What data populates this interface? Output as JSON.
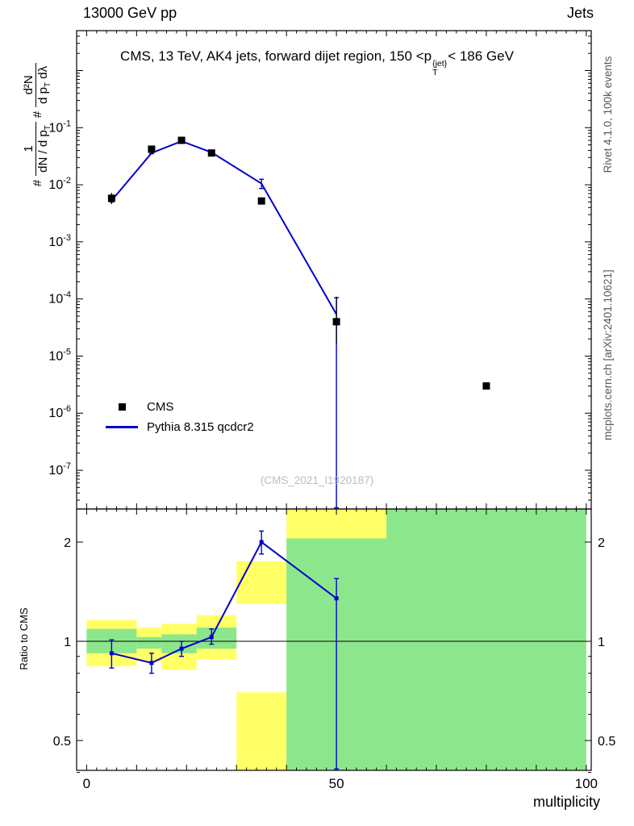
{
  "header": {
    "left": "13000 GeV pp",
    "right": "Jets"
  },
  "title": {
    "pre": "CMS, 13 TeV, AK4 jets, forward dijet region, 150 <p",
    "sup": "{jet}",
    "sub": "T",
    "post": "< 186 GeV"
  },
  "ylabel": {
    "hash1": "#",
    "frac1_num": "1",
    "frac1_den_pre": "dN / d p",
    "frac1_den_sub": "T",
    "hash2": "#",
    "frac2_num": "d²N",
    "frac2_den_pre": "d p",
    "frac2_den_sub": "T",
    "frac2_den_post": " dλ"
  },
  "ratio_ylabel": "Ratio to CMS",
  "xlabel": "multiplicity",
  "watermark": "(CMS_2021_I1920187)",
  "side_notes": {
    "rivet": "Rivet 4.1.0, 100k events",
    "mcplots": "mcplots.cern.ch [arXiv:2401.10621]"
  },
  "legend": [
    {
      "label": "CMS"
    },
    {
      "label": "Pythia 8.315 qcdcr2"
    }
  ],
  "colors": {
    "line": "#0000cc",
    "marker": "#000000",
    "band_yellow": "#ffff66",
    "band_green": "#8ce78c"
  },
  "chart_data": {
    "type": "line",
    "title": "CMS, 13 TeV, AK4 jets, forward dijet region, 150 <p_T^{jet}< 186 GeV",
    "xlabel": "multiplicity",
    "ylabel": "# 1/(dN / d p_T) # d²N/(d p_T dλ)",
    "ratio_ylabel": "Ratio to CMS",
    "legend": [
      "CMS",
      "Pythia 8.315 qcdcr2"
    ],
    "x_range": [
      -2,
      101
    ],
    "y_range": [
      2.1e-08,
      5.0
    ],
    "ratio_range": [
      0.406,
      2.52
    ],
    "y_scale": "log",
    "ratio_scale": "log",
    "x_tick_labels": [
      0,
      50,
      100
    ],
    "x_tick_major_step": 10,
    "x_tick_minor_step": 2,
    "y_tick_exponents": [
      -1,
      -2,
      -3,
      -4,
      -5,
      -6,
      -7
    ],
    "ratio_major_ticks": [
      2,
      1,
      0.5
    ],
    "ratio_major_labels": [
      "2",
      "1",
      "0.5"
    ],
    "ratio_minor_ticks": [
      0.4,
      0.6,
      0.7,
      0.8,
      0.9
    ],
    "bin_edges": [
      0,
      10,
      15,
      22,
      30,
      40,
      60,
      100
    ],
    "series": {
      "cms": {
        "x": [
          5,
          13,
          19,
          25,
          35,
          50,
          80
        ],
        "y": [
          0.0058,
          0.042,
          0.06,
          0.036,
          0.0052,
          4e-05,
          3e-06
        ],
        "yerr_lo": [
          0.0046,
          0.039,
          0.057,
          0.034,
          0.0046,
          1.6e-05,
          2.6e-06
        ],
        "yerr_hi": [
          0.0072,
          0.045,
          0.063,
          0.038,
          0.0059,
          0.00011,
          3.4e-06
        ]
      },
      "pythia": {
        "x": [
          5,
          13,
          19,
          25,
          35,
          50
        ],
        "y": [
          0.0053,
          0.036,
          0.058,
          0.037,
          0.0105,
          5.4e-05
        ],
        "yerr_lo": [
          0.005,
          0.035,
          0.056,
          0.0355,
          0.0086,
          2.2e-08
        ],
        "yerr_hi": [
          0.0056,
          0.037,
          0.06,
          0.0385,
          0.0125,
          0.000105
        ]
      },
      "ratio": {
        "x": [
          5,
          13,
          19,
          25,
          35,
          50
        ],
        "y": [
          0.92,
          0.86,
          0.95,
          1.03,
          2.0,
          1.35
        ],
        "yerr_lo": [
          0.83,
          0.8,
          0.9,
          0.98,
          1.84,
          0.41
        ],
        "yerr_hi": [
          1.01,
          0.92,
          1.0,
          1.09,
          2.16,
          1.55
        ]
      }
    },
    "bands": [
      {
        "x1": 0,
        "x2": 10,
        "lo": 0.84,
        "hi": 1.16,
        "c": "y"
      },
      {
        "x1": 10,
        "x2": 15,
        "lo": 0.87,
        "hi": 1.1,
        "c": "y"
      },
      {
        "x1": 15,
        "x2": 22,
        "lo": 0.82,
        "hi": 1.13,
        "c": "y"
      },
      {
        "x1": 22,
        "x2": 30,
        "lo": 0.88,
        "hi": 1.2,
        "c": "y"
      },
      {
        "x1": 30,
        "x2": 40,
        "lo": 1.3,
        "hi": 1.75,
        "c": "y"
      },
      {
        "x1": 30,
        "x2": 40,
        "lo": 0.406,
        "hi": 0.7,
        "c": "y"
      },
      {
        "x1": 40,
        "x2": 60,
        "lo": 0.406,
        "hi": 2.52,
        "c": "y"
      },
      {
        "x1": 0,
        "x2": 10,
        "lo": 0.92,
        "hi": 1.09,
        "c": "g"
      },
      {
        "x1": 10,
        "x2": 15,
        "lo": 0.95,
        "hi": 1.03,
        "c": "g"
      },
      {
        "x1": 15,
        "x2": 22,
        "lo": 0.92,
        "hi": 1.05,
        "c": "g"
      },
      {
        "x1": 22,
        "x2": 30,
        "lo": 0.95,
        "hi": 1.1,
        "c": "g"
      },
      {
        "x1": 40,
        "x2": 60,
        "lo": 0.406,
        "hi": 2.05,
        "c": "g"
      },
      {
        "x1": 60,
        "x2": 100,
        "lo": 0.406,
        "hi": 2.52,
        "c": "g"
      }
    ]
  }
}
